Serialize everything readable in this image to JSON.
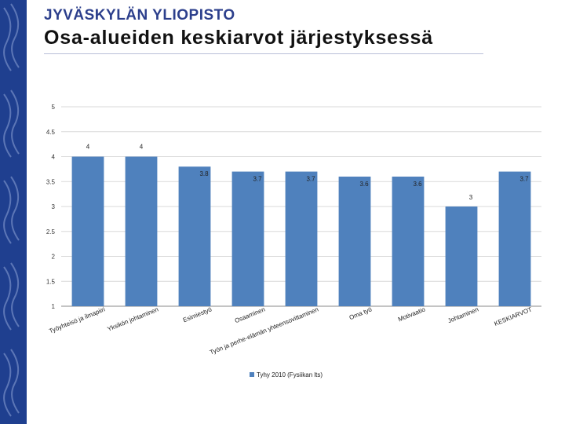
{
  "header": {
    "brand": "JYVÄSKYLÄN YLIOPISTO",
    "title": "Osa-alueiden keskiarvot järjestyksessä"
  },
  "colors": {
    "bar": "#4f81bd",
    "sidebar": "#1f3f8f",
    "brand": "#2c3f8c",
    "grid": "#d9d9d9"
  },
  "icons": {
    "sidebar": "flame-torch-icon"
  },
  "chart_data": {
    "type": "bar",
    "categories": [
      "Työyhteisö ja ilmapiiri",
      "Yksikön johtaminen",
      "Esimiestyö",
      "Osaaminen",
      "Työn ja perhe-elämän yhteensovittaminen",
      "Oma työ",
      "Motivaatio",
      "Johtaminen",
      "KESKIARVOT"
    ],
    "category_labels_display": [
      "Työyhteisö ja ilmapiiri",
      "Yksikön johtaminen",
      "Esimiestyö",
      "Osaaminen",
      "Työn ja perhe-elämän yhteensovittaminen",
      "Oma työ",
      "Motivaatio",
      "Johtaminen",
      "KESKIARVOT"
    ],
    "series": [
      {
        "name": "Tyhy 2010 (Fysiikan lts)",
        "values": [
          4,
          4,
          3.8,
          3.7,
          3.7,
          3.6,
          3.6,
          3,
          3.7
        ]
      }
    ],
    "value_labels": [
      "4",
      "4",
      "3.8",
      "3.7",
      "3.7",
      "3.6",
      "3.6",
      "3",
      "3.7"
    ],
    "yticks": [
      "1",
      "1.5",
      "2",
      "2.5",
      "3",
      "3.5",
      "4",
      "4.5",
      "5"
    ],
    "ytick_values": [
      1,
      1.5,
      2,
      2.5,
      3,
      3.5,
      4,
      4.5,
      5
    ],
    "ylim": [
      1,
      5
    ],
    "grid": true,
    "legend_position": "bottom",
    "title": "",
    "xlabel": "",
    "ylabel": ""
  }
}
